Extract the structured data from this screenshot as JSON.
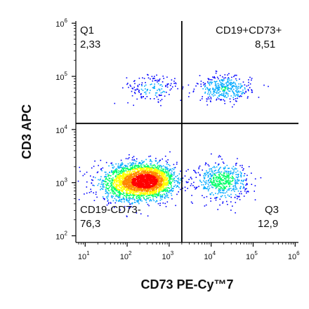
{
  "chart_data": {
    "type": "scatter",
    "xlabel": "CD73 PE-Cy™7",
    "ylabel": "CD3 APC",
    "x_scale": "log",
    "y_scale": "log",
    "xlim": [
      6,
      1200000
    ],
    "ylim": [
      75,
      1100000
    ],
    "x_ticks": [
      {
        "base": "10",
        "exp": "1",
        "value": 10
      },
      {
        "base": "10",
        "exp": "2",
        "value": 100
      },
      {
        "base": "10",
        "exp": "3",
        "value": 1000
      },
      {
        "base": "10",
        "exp": "4",
        "value": 10000
      },
      {
        "base": "10",
        "exp": "5",
        "value": 100000
      },
      {
        "base": "10",
        "exp": "6",
        "value": 1000000
      }
    ],
    "y_ticks": [
      {
        "base": "10",
        "exp": "2",
        "value": 100
      },
      {
        "base": "10",
        "exp": "3",
        "value": 1000
      },
      {
        "base": "10",
        "exp": "4",
        "value": 10000
      },
      {
        "base": "10",
        "exp": "5",
        "value": 100000
      },
      {
        "base": "10",
        "exp": "6",
        "value": 1000000
      }
    ],
    "gates": {
      "x_threshold": 2000,
      "y_threshold": 13000
    },
    "quadrants": [
      {
        "name": "Q1",
        "value": "2,33",
        "position": "top-left"
      },
      {
        "name": "CD19+CD73+",
        "value": "8,51",
        "position": "top-right"
      },
      {
        "name": "CD19-CD73-",
        "value": "76,3",
        "position": "bottom-left"
      },
      {
        "name": "Q3",
        "value": "12,9",
        "position": "bottom-right"
      }
    ],
    "populations": [
      {
        "x": 300,
        "y": 1100,
        "sdx": 0.32,
        "sdy": 0.16,
        "weight": 0.55
      },
      {
        "x": 80,
        "y": 1000,
        "sdx": 0.35,
        "sdy": 0.18,
        "weight": 0.2
      },
      {
        "x": 18000,
        "y": 1100,
        "sdx": 0.3,
        "sdy": 0.17,
        "weight": 0.13
      },
      {
        "x": 20000,
        "y": 60000,
        "sdx": 0.32,
        "sdy": 0.12,
        "weight": 0.085
      },
      {
        "x": 400,
        "y": 60000,
        "sdx": 0.35,
        "sdy": 0.14,
        "weight": 0.035
      }
    ],
    "grid": false,
    "colors": [
      "#0000ff",
      "#00aaff",
      "#00ff66",
      "#ffff00",
      "#ff8800",
      "#ff0000"
    ]
  }
}
